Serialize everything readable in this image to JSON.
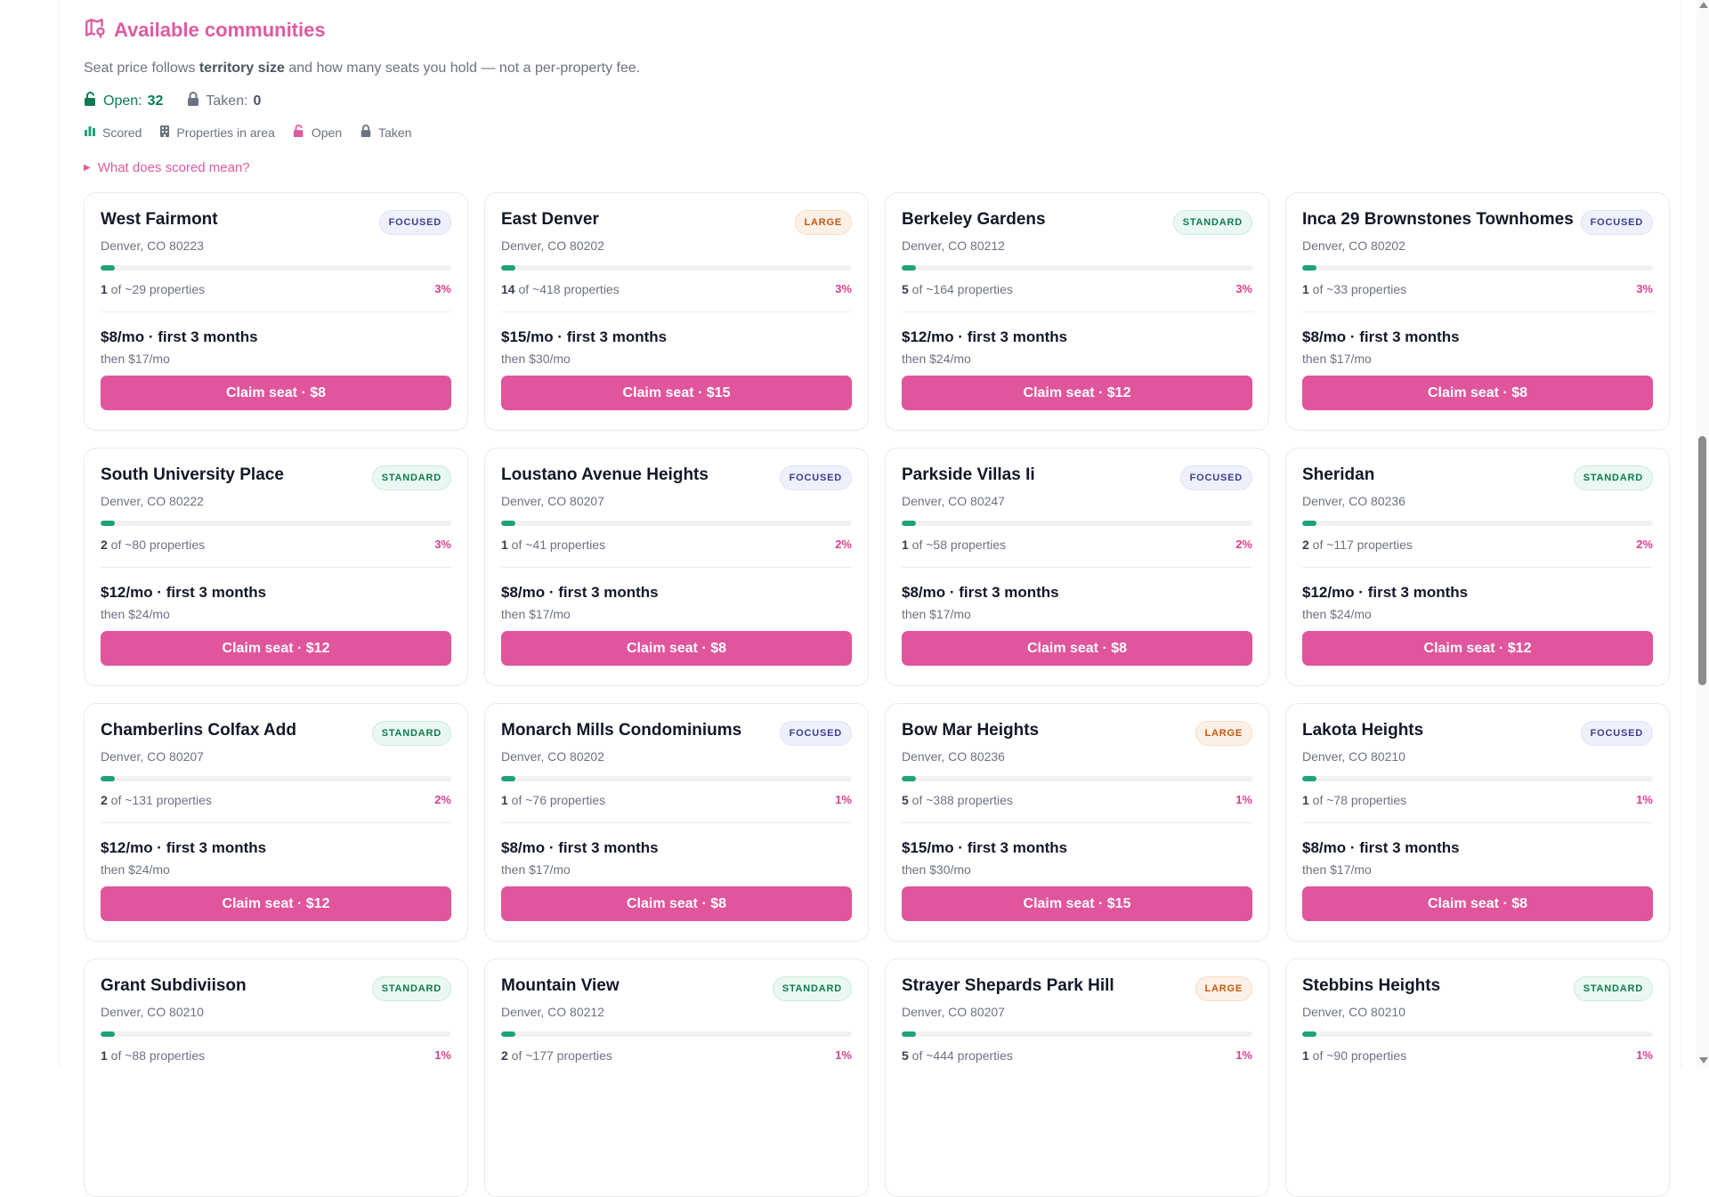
{
  "section": {
    "title": "Available communities",
    "subtitle_pre": "Seat price follows ",
    "subtitle_bold": "territory size",
    "subtitle_post": " and how many seats you hold — not a per-property fee."
  },
  "counts": {
    "open_label": "Open:",
    "open_value": "32",
    "taken_label": "Taken:",
    "taken_value": "0"
  },
  "legend": {
    "scored": "Scored",
    "properties": "Properties in area",
    "open": "Open",
    "taken": "Taken"
  },
  "details_label": "What does scored mean?",
  "colors": {
    "accent": "#e0559c",
    "progress": "#1fa27a"
  },
  "cards": [
    {
      "name": "West Fairmont",
      "badge": "FOCUSED",
      "badge_type": "focused",
      "address": "Denver, CO 80223",
      "scored": "1",
      "properties_text": " of ~29 properties",
      "pct": "3%",
      "pct_value": 3,
      "price": "$8/mo · first 3 months",
      "then": "then $17/mo",
      "button": "Claim seat · $8"
    },
    {
      "name": "East Denver",
      "badge": "LARGE",
      "badge_type": "large",
      "address": "Denver, CO 80202",
      "scored": "14",
      "properties_text": " of ~418 properties",
      "pct": "3%",
      "pct_value": 3,
      "price": "$15/mo · first 3 months",
      "then": "then $30/mo",
      "button": "Claim seat · $15"
    },
    {
      "name": "Berkeley Gardens",
      "badge": "STANDARD",
      "badge_type": "standard",
      "address": "Denver, CO 80212",
      "scored": "5",
      "properties_text": " of ~164 properties",
      "pct": "3%",
      "pct_value": 3,
      "price": "$12/mo · first 3 months",
      "then": "then $24/mo",
      "button": "Claim seat · $12"
    },
    {
      "name": "Inca 29 Brownstones Townhomes",
      "badge": "FOCUSED",
      "badge_type": "focused",
      "address": "Denver, CO 80202",
      "scored": "1",
      "properties_text": " of ~33 properties",
      "pct": "3%",
      "pct_value": 3,
      "price": "$8/mo · first 3 months",
      "then": "then $17/mo",
      "button": "Claim seat · $8"
    },
    {
      "name": "South University Place",
      "badge": "STANDARD",
      "badge_type": "standard",
      "address": "Denver, CO 80222",
      "scored": "2",
      "properties_text": " of ~80 properties",
      "pct": "3%",
      "pct_value": 3,
      "price": "$12/mo · first 3 months",
      "then": "then $24/mo",
      "button": "Claim seat · $12"
    },
    {
      "name": "Loustano Avenue Heights",
      "badge": "FOCUSED",
      "badge_type": "focused",
      "address": "Denver, CO 80207",
      "scored": "1",
      "properties_text": " of ~41 properties",
      "pct": "2%",
      "pct_value": 2,
      "price": "$8/mo · first 3 months",
      "then": "then $17/mo",
      "button": "Claim seat · $8"
    },
    {
      "name": "Parkside Villas Ii",
      "badge": "FOCUSED",
      "badge_type": "focused",
      "address": "Denver, CO 80247",
      "scored": "1",
      "properties_text": " of ~58 properties",
      "pct": "2%",
      "pct_value": 2,
      "price": "$8/mo · first 3 months",
      "then": "then $17/mo",
      "button": "Claim seat · $8"
    },
    {
      "name": "Sheridan",
      "badge": "STANDARD",
      "badge_type": "standard",
      "address": "Denver, CO 80236",
      "scored": "2",
      "properties_text": " of ~117 properties",
      "pct": "2%",
      "pct_value": 2,
      "price": "$12/mo · first 3 months",
      "then": "then $24/mo",
      "button": "Claim seat · $12"
    },
    {
      "name": "Chamberlins Colfax Add",
      "badge": "STANDARD",
      "badge_type": "standard",
      "address": "Denver, CO 80207",
      "scored": "2",
      "properties_text": " of ~131 properties",
      "pct": "2%",
      "pct_value": 2,
      "price": "$12/mo · first 3 months",
      "then": "then $24/mo",
      "button": "Claim seat · $12"
    },
    {
      "name": "Monarch Mills Condominiums",
      "badge": "FOCUSED",
      "badge_type": "focused",
      "address": "Denver, CO 80202",
      "scored": "1",
      "properties_text": " of ~76 properties",
      "pct": "1%",
      "pct_value": 1,
      "price": "$8/mo · first 3 months",
      "then": "then $17/mo",
      "button": "Claim seat · $8"
    },
    {
      "name": "Bow Mar Heights",
      "badge": "LARGE",
      "badge_type": "large",
      "address": "Denver, CO 80236",
      "scored": "5",
      "properties_text": " of ~388 properties",
      "pct": "1%",
      "pct_value": 1,
      "price": "$15/mo · first 3 months",
      "then": "then $30/mo",
      "button": "Claim seat · $15"
    },
    {
      "name": "Lakota Heights",
      "badge": "FOCUSED",
      "badge_type": "focused",
      "address": "Denver, CO 80210",
      "scored": "1",
      "properties_text": " of ~78 properties",
      "pct": "1%",
      "pct_value": 1,
      "price": "$8/mo · first 3 months",
      "then": "then $17/mo",
      "button": "Claim seat · $8"
    },
    {
      "name": "Grant Subdiviison",
      "badge": "STANDARD",
      "badge_type": "standard",
      "address": "Denver, CO 80210",
      "scored": "1",
      "properties_text": " of ~88 properties",
      "pct": "1%",
      "pct_value": 1,
      "price": "",
      "then": "",
      "button": ""
    },
    {
      "name": "Mountain View",
      "badge": "STANDARD",
      "badge_type": "standard",
      "address": "Denver, CO 80212",
      "scored": "2",
      "properties_text": " of ~177 properties",
      "pct": "1%",
      "pct_value": 1,
      "price": "",
      "then": "",
      "button": ""
    },
    {
      "name": "Strayer Shepards Park Hill",
      "badge": "LARGE",
      "badge_type": "large",
      "address": "Denver, CO 80207",
      "scored": "5",
      "properties_text": " of ~444 properties",
      "pct": "1%",
      "pct_value": 1,
      "price": "",
      "then": "",
      "button": ""
    },
    {
      "name": "Stebbins Heights",
      "badge": "STANDARD",
      "badge_type": "standard",
      "address": "Denver, CO 80210",
      "scored": "1",
      "properties_text": " of ~90 properties",
      "pct": "1%",
      "pct_value": 1,
      "price": "",
      "then": "",
      "button": ""
    }
  ]
}
